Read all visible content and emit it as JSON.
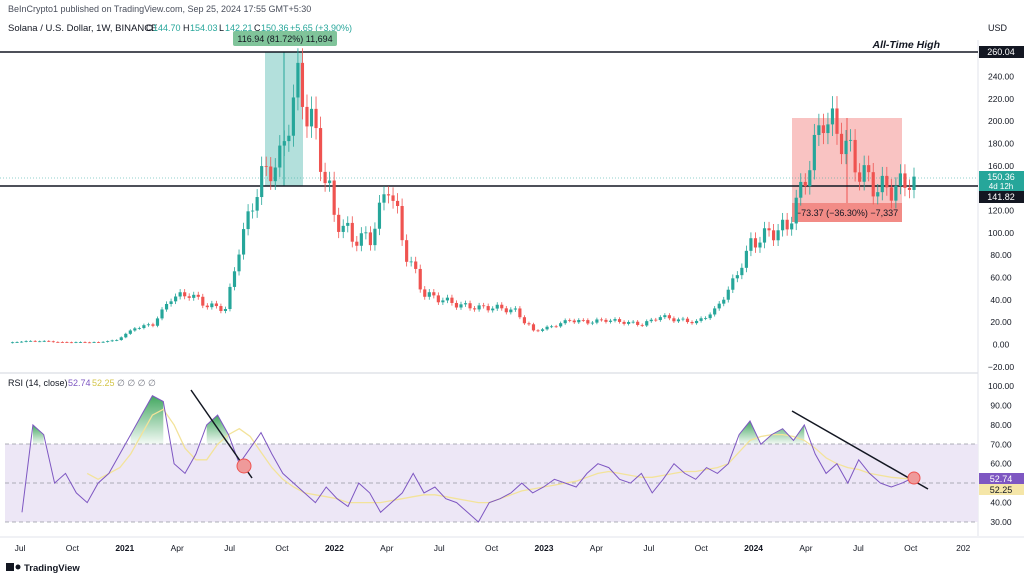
{
  "header": {
    "published": "BeInCrypto1 published on TradingView.com, Sep 25, 2024 17:55 GMT+5:30",
    "symbol": "Solana / U.S. Dollar, 1W, BINANCE",
    "o_label": "O",
    "o_value": "144.70",
    "h_label": "H",
    "h_value": "154.03",
    "l_label": "L",
    "l_value": "142.21",
    "c_label": "C",
    "c_value": "150.36",
    "change": "+5.65 (+3.90%)",
    "currency": "USD"
  },
  "annotations": {
    "ath_label": "All-Time High",
    "ath_price": "260.04",
    "current_price": "150.36",
    "time_to_close": "4d 12h",
    "support_price": "141.82",
    "rally_measure": "116.94 (81.72%) 11,694",
    "drop_measure": "−73.37 (−36.30%) −7,337"
  },
  "rsi": {
    "title": "RSI (14, close)",
    "value": "52.74",
    "ma_value": "52.25",
    "extra": "∅ ∅ ∅ ∅",
    "value_badge": "52.74",
    "ma_badge": "52.25"
  },
  "footer": {
    "brand": "TradingView"
  },
  "colors": {
    "up": "#26a69a",
    "down": "#ef5350",
    "rsi": "#7e57c2",
    "rsi_ma": "#f5e6a8",
    "band": "#ede7f6",
    "level": "#131722"
  },
  "chart_data": [
    {
      "type": "candlestick",
      "title": "Solana / U.S. Dollar, 1W, BINANCE",
      "ylabel": "USD",
      "y_ticks": [
        -20,
        0,
        20,
        40,
        60,
        80,
        100,
        120,
        140,
        160,
        180,
        200,
        220,
        240
      ],
      "ylim": [
        -25,
        265
      ],
      "x_ticks": [
        "Jul",
        "Oct",
        "2021",
        "Apr",
        "Jul",
        "Oct",
        "2022",
        "Apr",
        "Jul",
        "Oct",
        "2023",
        "Apr",
        "Jul",
        "Oct",
        "2024",
        "Apr",
        "Jul",
        "Oct",
        "202"
      ],
      "x": [
        "2020-07",
        "2020-08",
        "2020-09",
        "2020-10",
        "2020-11",
        "2020-12",
        "2021-01",
        "2021-02",
        "2021-03",
        "2021-04",
        "2021-05",
        "2021-06",
        "2021-07",
        "2021-08",
        "2021-09",
        "2021-10",
        "2021-11",
        "2021-12",
        "2022-01",
        "2022-02",
        "2022-03",
        "2022-04",
        "2022-05",
        "2022-06",
        "2022-07",
        "2022-08",
        "2022-09",
        "2022-10",
        "2022-11",
        "2022-12",
        "2023-01",
        "2023-02",
        "2023-03",
        "2023-04",
        "2023-05",
        "2023-06",
        "2023-07",
        "2023-08",
        "2023-09",
        "2023-10",
        "2023-11",
        "2023-12",
        "2024-01",
        "2024-02",
        "2024-03",
        "2024-04",
        "2024-05",
        "2024-06",
        "2024-07",
        "2024-08",
        "2024-09"
      ],
      "close": [
        1.5,
        3,
        3,
        2,
        2,
        2,
        4,
        15,
        18,
        42,
        45,
        35,
        32,
        100,
        150,
        165,
        235,
        185,
        115,
        95,
        95,
        145,
        80,
        45,
        40,
        35,
        33,
        33,
        30,
        12,
        16,
        22,
        20,
        22,
        20,
        18,
        25,
        22,
        20,
        30,
        55,
        90,
        100,
        105,
        150,
        205,
        185,
        155,
        140,
        140,
        150.36
      ],
      "levels": [
        {
          "label": "All-Time High",
          "value": 260.04
        },
        {
          "label": "141.82",
          "value": 141.82
        }
      ],
      "measures": [
        {
          "label": "116.94 (81.72%) 11,694",
          "from": 143,
          "to": 260
        },
        {
          "label": "−73.37 (−36.30%) −7,337",
          "from": 202,
          "to": 129
        }
      ]
    },
    {
      "type": "line",
      "title": "RSI (14, close)",
      "y_ticks": [
        30,
        40,
        50,
        60,
        70,
        80,
        90,
        100
      ],
      "ylim": [
        25,
        100
      ],
      "band": [
        30,
        70
      ],
      "series": [
        {
          "name": "RSI",
          "values": [
            35,
            80,
            75,
            50,
            55,
            45,
            40,
            50,
            55,
            65,
            75,
            85,
            95,
            92,
            60,
            55,
            65,
            80,
            85,
            75,
            60,
            68,
            76,
            65,
            55,
            50,
            45,
            40,
            48,
            42,
            38,
            50,
            45,
            35,
            40,
            45,
            55,
            45,
            48,
            42,
            40,
            35,
            30,
            40,
            42,
            45,
            50,
            45,
            48,
            52,
            50,
            48,
            55,
            60,
            58,
            52,
            50,
            55,
            45,
            52,
            60,
            55,
            52,
            58,
            55,
            60,
            75,
            82,
            70,
            75,
            78,
            72,
            80,
            65,
            55,
            60,
            50,
            62,
            55,
            50,
            48,
            50,
            52.74
          ]
        },
        {
          "name": "RSI MA",
          "values": [
            null,
            null,
            null,
            null,
            null,
            null,
            55,
            52,
            55,
            58,
            65,
            75,
            85,
            88,
            80,
            68,
            62,
            62,
            70,
            75,
            78,
            74,
            66,
            58,
            52,
            48,
            45,
            44,
            43,
            42,
            40,
            40,
            40,
            40,
            41,
            42,
            43,
            44,
            44,
            43,
            42,
            41,
            40,
            40,
            42,
            44,
            46,
            47,
            48,
            49,
            50,
            51,
            53,
            55,
            56,
            55,
            54,
            53,
            53,
            54,
            55,
            56,
            56,
            57,
            58,
            60,
            66,
            72,
            74,
            75,
            75,
            74,
            72,
            68,
            63,
            60,
            58,
            57,
            55,
            54,
            53,
            52.5,
            52.25
          ]
        }
      ]
    }
  ]
}
